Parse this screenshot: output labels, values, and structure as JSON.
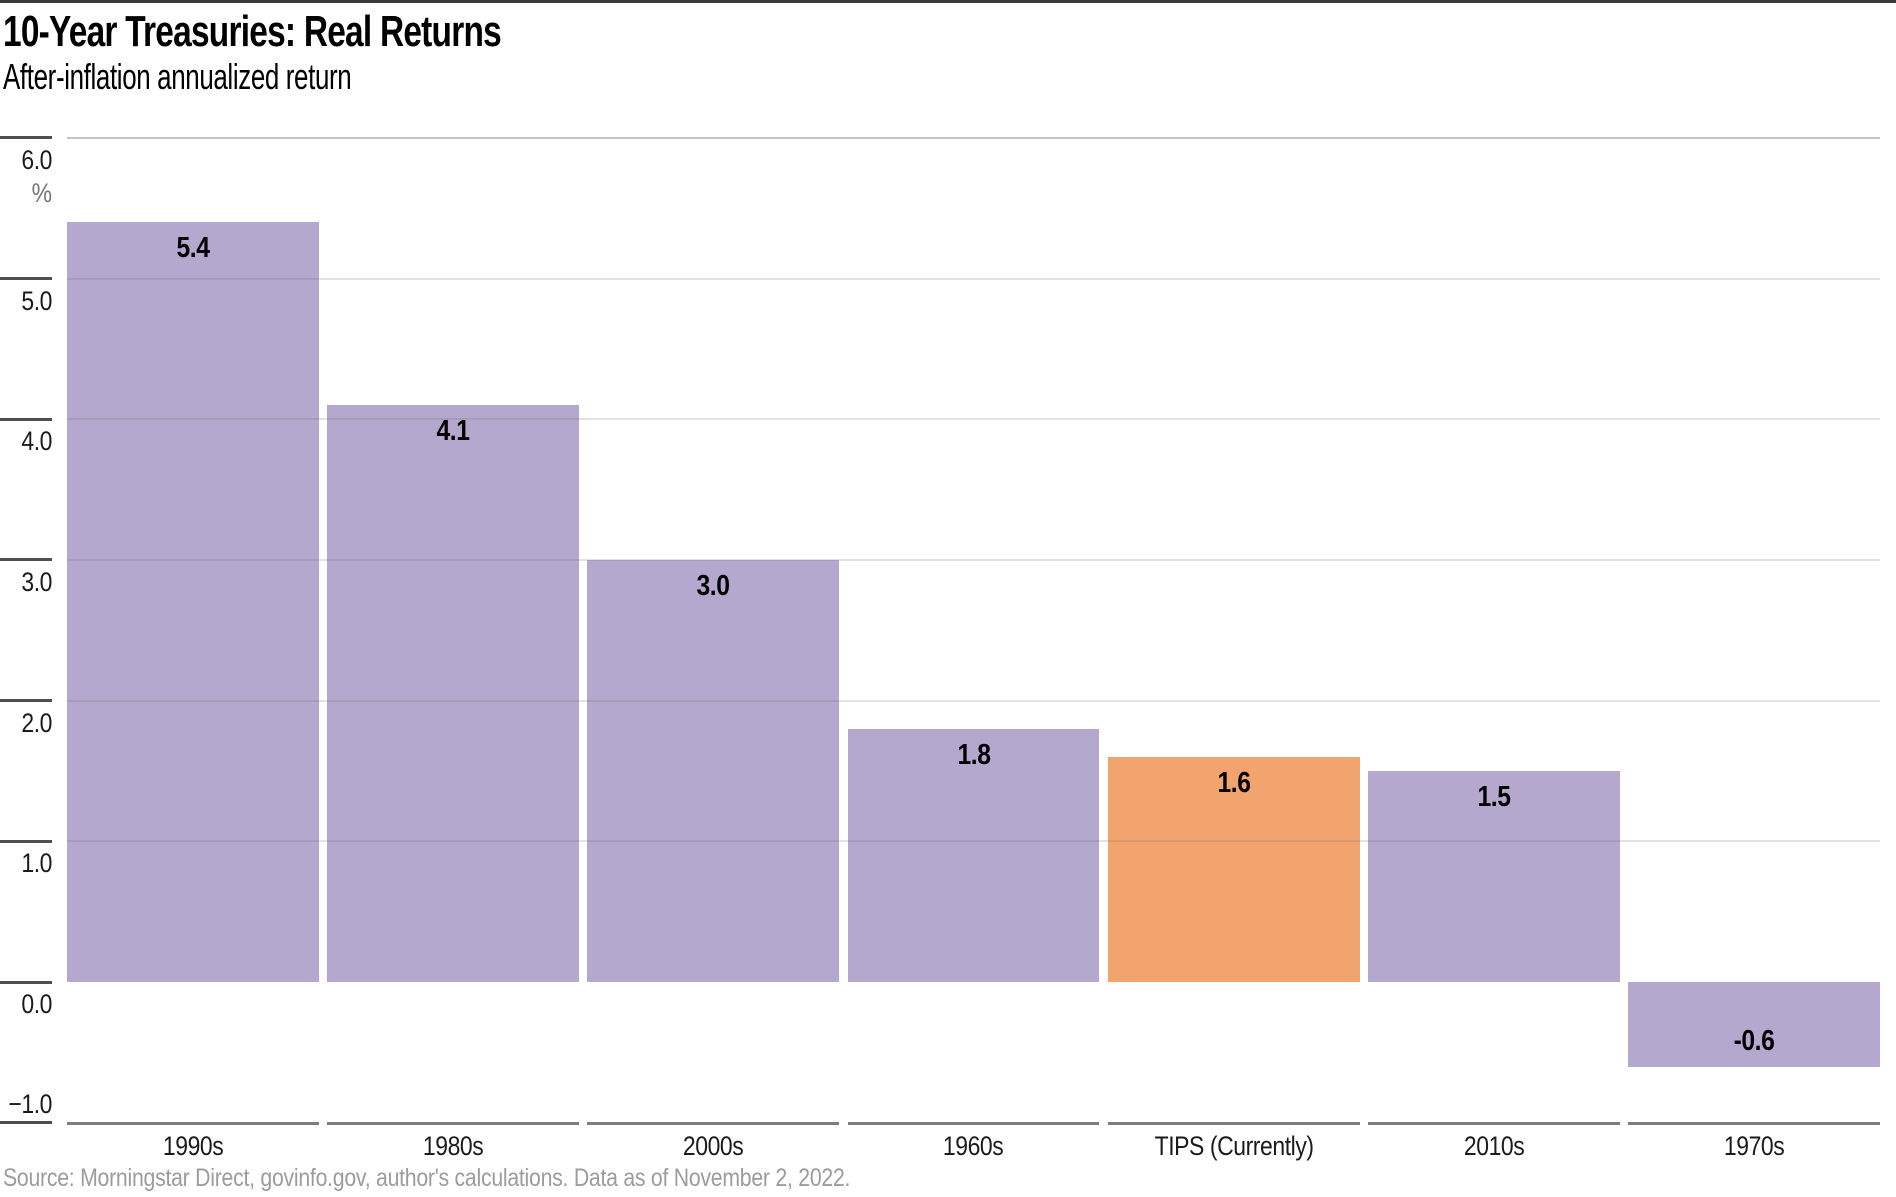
{
  "chart_data": {
    "type": "bar",
    "title": "10-Year Treasuries: Real Returns",
    "subtitle": "After-inflation annualized return",
    "unit_label": "%",
    "categories": [
      "1990s",
      "1980s",
      "2000s",
      "1960s",
      "TIPS (Currently)",
      "2010s",
      "1970s"
    ],
    "values": [
      5.4,
      4.1,
      3.0,
      1.8,
      1.6,
      1.5,
      -0.6
    ],
    "value_labels": [
      "5.4",
      "4.1",
      "3.0",
      "1.8",
      "1.6",
      "1.5",
      "-0.6"
    ],
    "highlight_category": "TIPS (Currently)",
    "highlight_index": 4,
    "bar_color": "#b5a8ce",
    "highlight_color": "#f2a46f",
    "ylim": [
      -1.0,
      6.0
    ],
    "yticks": [
      {
        "value": 6.0,
        "label": "6.0"
      },
      {
        "value": 5.0,
        "label": "5.0"
      },
      {
        "value": 4.0,
        "label": "4.0"
      },
      {
        "value": 3.0,
        "label": "3.0"
      },
      {
        "value": 2.0,
        "label": "2.0"
      },
      {
        "value": 1.0,
        "label": "1.0"
      },
      {
        "value": 0.0,
        "label": "0.0"
      },
      {
        "value": -1.0,
        "label": "−1.0"
      }
    ],
    "grid": true,
    "legend": "none",
    "source": "Source: Morningstar Direct, govinfo.gov, author's calculations. Data as of November 2, 2022."
  }
}
